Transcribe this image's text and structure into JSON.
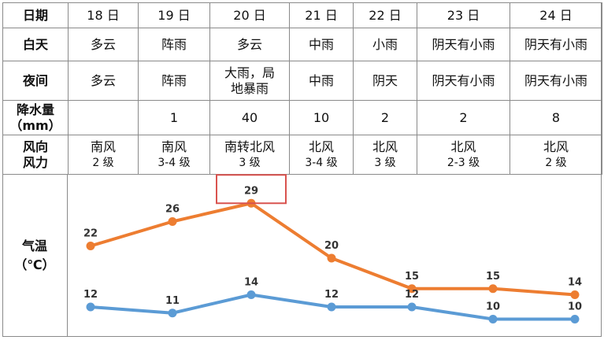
{
  "table": {
    "row_labels": {
      "date": "日期",
      "day": "白天",
      "night": "夜间",
      "precip": [
        "降水量",
        "（mm）"
      ],
      "wind": [
        "风向",
        "风力"
      ]
    },
    "days": [
      {
        "date": "18 日",
        "day": "多云",
        "night": [
          "多云"
        ],
        "precip": "",
        "wind_dir": "南风",
        "wind_level": "2 级"
      },
      {
        "date": "19 日",
        "day": "阵雨",
        "night": [
          "阵雨"
        ],
        "precip": "1",
        "wind_dir": "南风",
        "wind_level": "3-4 级"
      },
      {
        "date": "20 日",
        "day": "多云",
        "night": [
          "大雨，局",
          "地暴雨"
        ],
        "precip": "40",
        "wind_dir": "南转北风",
        "wind_level": "3 级"
      },
      {
        "date": "21 日",
        "day": "中雨",
        "night": [
          "中雨"
        ],
        "precip": "10",
        "wind_dir": "北风",
        "wind_level": "3-4 级"
      },
      {
        "date": "22 日",
        "day": "小雨",
        "night": [
          "阴天"
        ],
        "precip": "2",
        "wind_dir": "北风",
        "wind_level": "3 级"
      },
      {
        "date": "23 日",
        "day": "阴天有小雨",
        "night": [
          "阴天有小雨"
        ],
        "precip": "2",
        "wind_dir": "北风",
        "wind_level": "2-3 级"
      },
      {
        "date": "24 日",
        "day": "阴天有小雨",
        "night": [
          "阴天有小雨"
        ],
        "precip": "8",
        "wind_dir": "北风",
        "wind_level": "2 级"
      }
    ]
  },
  "chart_label": [
    "气温",
    "（℃）"
  ],
  "chart_data": {
    "type": "line",
    "categories": [
      "18 日",
      "19 日",
      "20 日",
      "21 日",
      "22 日",
      "23 日",
      "24 日"
    ],
    "series": [
      {
        "values": [
          22,
          26,
          29,
          20,
          15,
          15,
          14
        ],
        "color": "#ED7D31"
      },
      {
        "values": [
          12,
          11,
          14,
          12,
          12,
          10,
          10
        ],
        "color": "#5B9BD5"
      }
    ],
    "ylim": [
      8,
      32
    ],
    "grid": false,
    "legend": "none",
    "annotations": [
      {
        "type": "highlight-box",
        "series": 0,
        "index": 2,
        "color": "#D9534F"
      }
    ]
  }
}
